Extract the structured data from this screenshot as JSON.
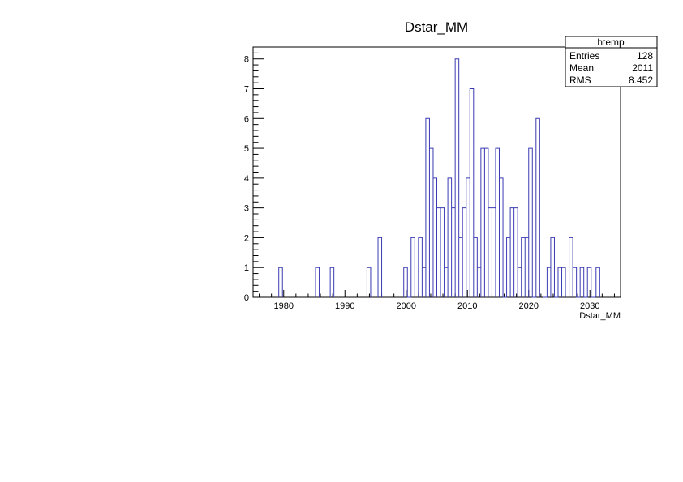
{
  "chart_data": {
    "type": "bar",
    "title": "Dstar_MM",
    "xlabel": "Dstar_MM",
    "ylabel": "",
    "xlim": [
      1975,
      2035
    ],
    "ylim": [
      0,
      8.4
    ],
    "bin_width": 0.6,
    "bins": [
      [
        1979.2,
        1
      ],
      [
        1985.2,
        1
      ],
      [
        1987.6,
        1
      ],
      [
        1993.6,
        1
      ],
      [
        1995.4,
        2
      ],
      [
        1999.6,
        1
      ],
      [
        2000.2,
        0
      ],
      [
        2000.8,
        2
      ],
      [
        2002.0,
        2
      ],
      [
        2002.6,
        1
      ],
      [
        2003.2,
        6
      ],
      [
        2003.8,
        5
      ],
      [
        2004.4,
        4
      ],
      [
        2005.0,
        3
      ],
      [
        2005.6,
        3
      ],
      [
        2006.2,
        1
      ],
      [
        2006.8,
        4
      ],
      [
        2007.4,
        3
      ],
      [
        2008.0,
        8
      ],
      [
        2008.6,
        2
      ],
      [
        2009.2,
        3
      ],
      [
        2009.8,
        4
      ],
      [
        2010.4,
        7
      ],
      [
        2011.0,
        2
      ],
      [
        2011.6,
        1
      ],
      [
        2012.2,
        5
      ],
      [
        2012.8,
        5
      ],
      [
        2013.4,
        3
      ],
      [
        2014.0,
        3
      ],
      [
        2014.6,
        5
      ],
      [
        2015.2,
        4
      ],
      [
        2015.8,
        0
      ],
      [
        2016.4,
        2
      ],
      [
        2017.0,
        3
      ],
      [
        2017.6,
        3
      ],
      [
        2018.2,
        1
      ],
      [
        2018.8,
        2
      ],
      [
        2019.4,
        2
      ],
      [
        2020.0,
        5
      ],
      [
        2020.6,
        0
      ],
      [
        2021.2,
        6
      ],
      [
        2022.4,
        0
      ],
      [
        2023.0,
        1
      ],
      [
        2023.6,
        2
      ],
      [
        2024.2,
        0
      ],
      [
        2024.8,
        1
      ],
      [
        2025.4,
        1
      ],
      [
        2026.6,
        2
      ],
      [
        2027.2,
        1
      ],
      [
        2027.8,
        0
      ],
      [
        2028.4,
        1
      ],
      [
        2029.0,
        0
      ],
      [
        2029.6,
        1
      ],
      [
        2030.2,
        0
      ],
      [
        2031.0,
        1
      ]
    ],
    "x_ticks": [
      1980,
      1990,
      2000,
      2010,
      2020,
      2030
    ],
    "y_ticks": [
      0,
      1,
      2,
      3,
      4,
      5,
      6,
      7,
      8
    ],
    "line_color": "#3b3bb3",
    "grid": false,
    "legend": "top-right"
  },
  "stats_box": {
    "title": "htemp",
    "rows": [
      {
        "label": "Entries",
        "value": "128"
      },
      {
        "label": "Mean",
        "value": "2011"
      },
      {
        "label": "RMS",
        "value": "8.452"
      }
    ]
  }
}
